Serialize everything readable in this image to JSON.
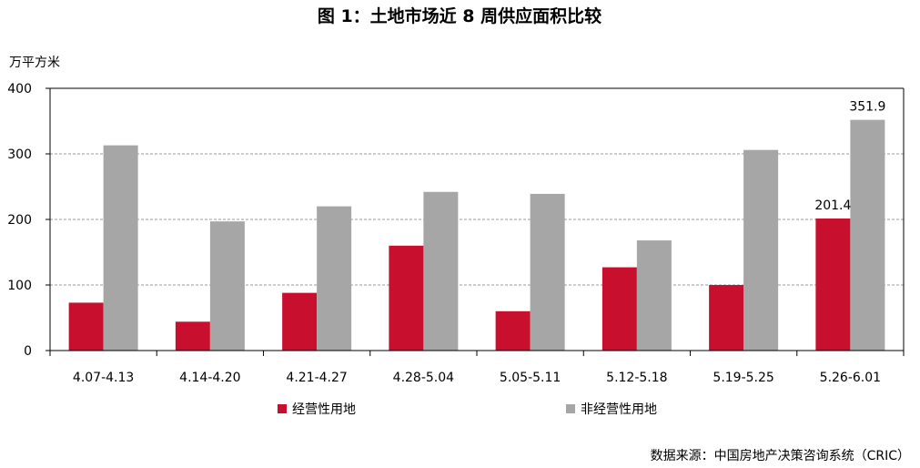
{
  "chart_data": {
    "type": "bar",
    "title": "图 1：土地市场近 8 周供应面积比较",
    "ylabel": "万平方米",
    "ylim": [
      0,
      400
    ],
    "yticks": [
      "0",
      "100",
      "200",
      "300",
      "400"
    ],
    "grid": true,
    "legend_position": "bottom",
    "categories": [
      "4.07-4.13",
      "4.14-4.20",
      "4.21-4.27",
      "4.28-5.04",
      "5.05-5.11",
      "5.12-5.18",
      "5.19-5.25",
      "5.26-6.01"
    ],
    "series": [
      {
        "name": "经营性用地",
        "color": "#C8102E",
        "values": [
          73,
          44,
          88,
          160,
          60,
          127,
          100,
          201.4
        ]
      },
      {
        "name": "非经营性用地",
        "color": "#A6A6A6",
        "values": [
          313,
          197,
          220,
          242,
          239,
          168,
          306,
          351.9
        ]
      }
    ],
    "data_labels": [
      {
        "series": 0,
        "index": 7,
        "text": "201.4"
      },
      {
        "series": 1,
        "index": 7,
        "text": "351.9"
      }
    ],
    "source": "数据来源：中国房地产决策咨询系统（CRIC）"
  }
}
